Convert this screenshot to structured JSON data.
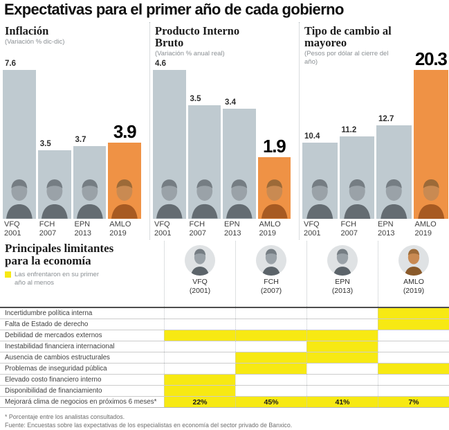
{
  "title": "Expectativas para el primer año de cada gobierno",
  "colors": {
    "bar_gray": "#bfcad0",
    "bar_highlight": "#ef9245",
    "highlight_yellow": "#f7e913"
  },
  "chart_data": [
    {
      "type": "bar",
      "title": "Inflación",
      "subtitle": "(Variación % dic-dic)",
      "categories": [
        "VFQ 2001",
        "FCH 2007",
        "EPN 2013",
        "AMLO 2019"
      ],
      "values": [
        7.6,
        3.5,
        3.7,
        3.9
      ],
      "highlight_index": 3,
      "ylim": [
        0,
        7.6
      ],
      "grid": false,
      "legend": "none"
    },
    {
      "type": "bar",
      "title": "Producto Interno Bruto",
      "subtitle": "(Variación % anual real)",
      "categories": [
        "VFQ 2001",
        "FCH 2007",
        "EPN 2013",
        "AMLO 2019"
      ],
      "values": [
        4.6,
        3.5,
        3.4,
        1.9
      ],
      "highlight_index": 3,
      "ylim": [
        0,
        4.6
      ],
      "grid": false,
      "legend": "none"
    },
    {
      "type": "bar",
      "title": "Tipo de cambio al mayoreo",
      "subtitle": "(Pesos por dólar al cierre del año)",
      "categories": [
        "VFQ 2001",
        "FCH 2007",
        "EPN 2013",
        "AMLO 2019"
      ],
      "values": [
        10.4,
        11.2,
        12.7,
        20.3
      ],
      "highlight_index": 3,
      "ylim": [
        0,
        20.3
      ],
      "grid": false,
      "legend": "none"
    }
  ],
  "table": {
    "section_title_line1": "Principales limitantes",
    "section_title_line2": "para la economía",
    "legend_text": "Las enfrentaron en su primer año al menos",
    "columns": [
      {
        "label": "VFQ",
        "year": "(2001)"
      },
      {
        "label": "FCH",
        "year": "(2007)"
      },
      {
        "label": "EPN",
        "year": "(2013)"
      },
      {
        "label": "AMLO",
        "year": "(2019)"
      }
    ],
    "rows": [
      {
        "label": "Incertidumbre política interna",
        "highlights": [
          false,
          false,
          false,
          true
        ]
      },
      {
        "label": "Falta de Estado de derecho",
        "highlights": [
          false,
          false,
          false,
          true
        ]
      },
      {
        "label": "Debilidad de mercados externos",
        "highlights": [
          true,
          true,
          true,
          false
        ]
      },
      {
        "label": "Inestabilidad financiera internacional",
        "highlights": [
          false,
          false,
          true,
          false
        ]
      },
      {
        "label": "Ausencia de cambios estructurales",
        "highlights": [
          false,
          true,
          true,
          false
        ]
      },
      {
        "label": "Problemas de inseguridad pública",
        "highlights": [
          false,
          true,
          false,
          true
        ]
      },
      {
        "label": "Elevado costo financiero interno",
        "highlights": [
          true,
          false,
          false,
          false
        ]
      },
      {
        "label": "Disponibilidad de financiamiento",
        "highlights": [
          true,
          false,
          false,
          false
        ]
      }
    ],
    "summary_row": {
      "label": "Mejorará clima de negocios en próximos 6 meses*",
      "values": [
        "22%",
        "45%",
        "41%",
        "7%"
      ]
    }
  },
  "footnotes": [
    "* Porcentaje entre los analistas consultados.",
    "Fuente: Encuestas sobre las expectativas de los especialistas en economía del sector privado de Banxico."
  ]
}
